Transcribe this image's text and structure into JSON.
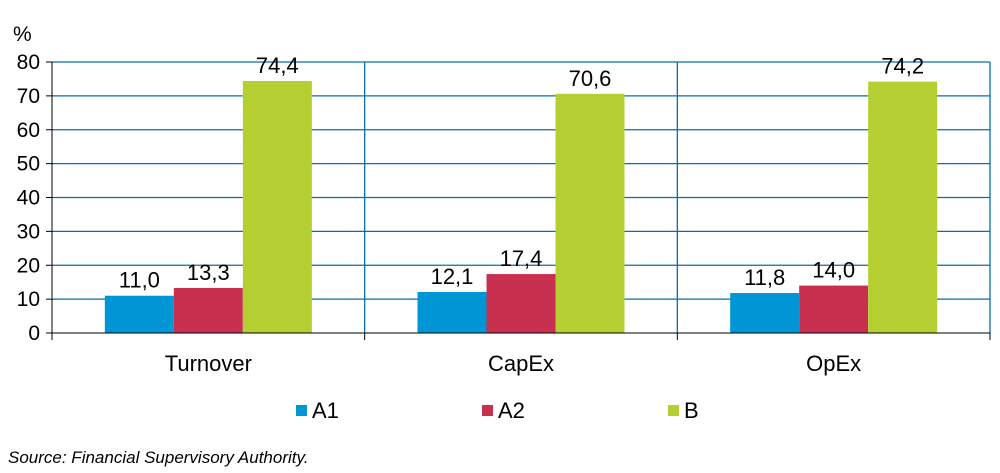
{
  "chart_data": {
    "type": "bar",
    "unit": "%",
    "categories": [
      "Turnover",
      "CapEx",
      "OpEx"
    ],
    "series": [
      {
        "name": "A1",
        "values": [
          11.0,
          12.1,
          11.8
        ],
        "labels": [
          "11,0",
          "12,1",
          "11,8"
        ],
        "color": "#0096d6"
      },
      {
        "name": "A2",
        "values": [
          13.3,
          17.4,
          14.0
        ],
        "labels": [
          "13,3",
          "17,4",
          "14,0"
        ],
        "color": "#c8304f"
      },
      {
        "name": "B",
        "values": [
          74.4,
          70.6,
          74.2
        ],
        "labels": [
          "74,4",
          "70,6",
          "74,2"
        ],
        "color": "#b5cf33"
      }
    ],
    "ylim": [
      0,
      80
    ],
    "yticks": [
      0,
      10,
      20,
      30,
      40,
      50,
      60,
      70,
      80
    ],
    "grid": true,
    "grid_color": "#0a6ea8",
    "legend_position": "bottom"
  },
  "source": "Source: Financial Supervisory Authority."
}
